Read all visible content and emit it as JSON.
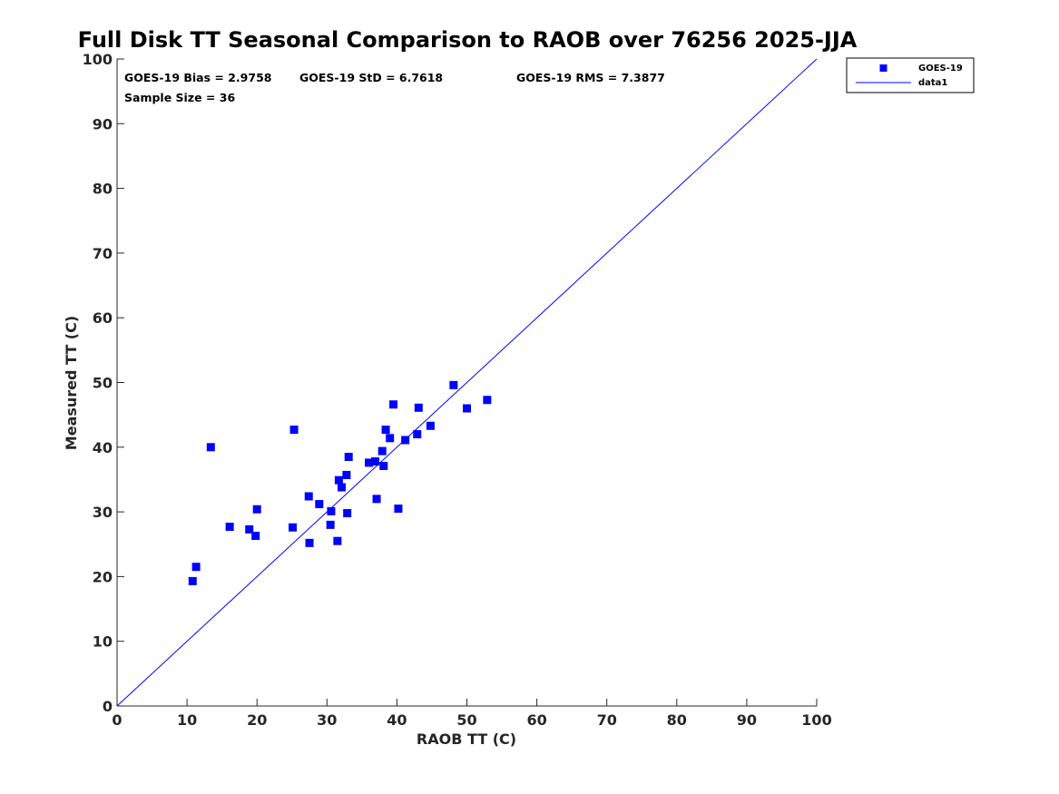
{
  "chart_data": {
    "type": "scatter",
    "title": "Full Disk TT Seasonal Comparison to RAOB over 76256 2025-JJA",
    "xlabel": "RAOB TT (C)",
    "ylabel": "Measured TT (C)",
    "xlim": [
      0,
      100
    ],
    "ylim": [
      0,
      100
    ],
    "xticks": [
      "0",
      "10",
      "20",
      "30",
      "40",
      "50",
      "60",
      "70",
      "80",
      "90",
      "100"
    ],
    "yticks": [
      "0",
      "10",
      "20",
      "30",
      "40",
      "50",
      "60",
      "70",
      "80",
      "90",
      "100"
    ],
    "grid": false,
    "legend_position": "outside-top-right",
    "stats": {
      "bias": "GOES-19 Bias = 2.9758",
      "std": "GOES-19 StD = 6.7618",
      "rms": "GOES-19 RMS = 7.3877",
      "sample": "Sample Size = 36"
    },
    "series": [
      {
        "name": "GOES-19",
        "kind": "scatter",
        "marker": "square",
        "color": "#0000ff",
        "points": [
          [
            10.8,
            19.3
          ],
          [
            11.3,
            21.5
          ],
          [
            13.4,
            40.0
          ],
          [
            16.1,
            27.7
          ],
          [
            18.9,
            27.3
          ],
          [
            19.8,
            26.3
          ],
          [
            20.0,
            30.4
          ],
          [
            25.1,
            27.6
          ],
          [
            25.3,
            42.7
          ],
          [
            27.4,
            32.4
          ],
          [
            27.5,
            25.2
          ],
          [
            28.9,
            31.2
          ],
          [
            30.5,
            28.0
          ],
          [
            30.6,
            30.1
          ],
          [
            31.5,
            25.5
          ],
          [
            31.7,
            34.9
          ],
          [
            32.1,
            33.8
          ],
          [
            32.8,
            35.7
          ],
          [
            32.9,
            29.8
          ],
          [
            33.1,
            38.5
          ],
          [
            36.0,
            37.6
          ],
          [
            36.9,
            37.8
          ],
          [
            37.1,
            32.0
          ],
          [
            37.9,
            39.4
          ],
          [
            38.1,
            37.1
          ],
          [
            38.4,
            42.7
          ],
          [
            39.0,
            41.4
          ],
          [
            39.5,
            46.6
          ],
          [
            40.2,
            30.5
          ],
          [
            41.2,
            41.1
          ],
          [
            42.9,
            42.0
          ],
          [
            43.1,
            46.1
          ],
          [
            44.8,
            43.3
          ],
          [
            48.1,
            49.6
          ],
          [
            50.0,
            46.0
          ],
          [
            52.9,
            47.3
          ]
        ]
      },
      {
        "name": "data1",
        "kind": "line",
        "color": "#0000ff",
        "points": [
          [
            0,
            0
          ],
          [
            100,
            100
          ]
        ]
      }
    ]
  }
}
